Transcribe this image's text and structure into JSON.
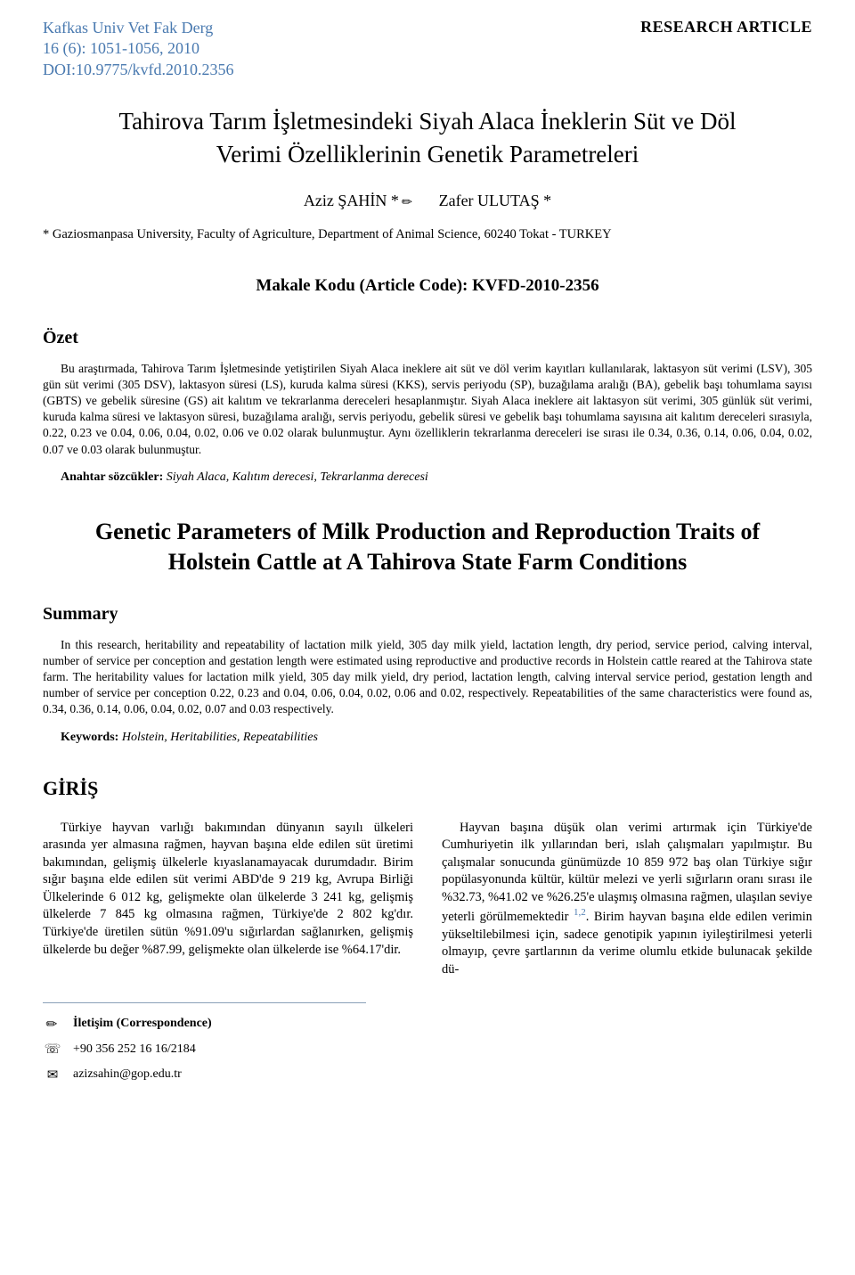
{
  "header": {
    "journal_name": "Kafkas Univ Vet Fak Derg",
    "issue": "16 (6): 1051-1056, 2010",
    "doi": "DOI:10.9775/kvfd.2010.2356",
    "article_type": "RESEARCH ARTICLE"
  },
  "title_tr": "Tahirova Tarım İşletmesindeki Siyah Alaca İneklerin Süt ve Döl Verimi Özelliklerinin Genetik Parametreleri",
  "authors": {
    "a1": "Aziz ŞAHİN *",
    "a2": "Zafer ULUTAŞ *"
  },
  "affiliation": "* Gaziosmanpasa University, Faculty of Agriculture, Department of Animal Science, 60240 Tokat - TURKEY",
  "article_code": "Makale Kodu (Article Code): KVFD-2010-2356",
  "ozet": {
    "heading": "Özet",
    "body": "Bu araştırmada, Tahirova Tarım İşletmesinde yetiştirilen Siyah Alaca ineklere ait süt ve döl verim kayıtları kullanılarak, laktasyon süt verimi (LSV), 305 gün süt verimi (305 DSV), laktasyon süresi (LS), kuruda kalma süresi (KKS), servis periyodu (SP), buzağılama aralığı (BA), gebelik başı tohumlama sayısı (GBTS) ve gebelik süresine (GS) ait kalıtım ve tekrarlanma dereceleri hesaplanmıştır. Siyah Alaca ineklere ait laktasyon süt verimi, 305 günlük süt verimi, kuruda kalma süresi ve laktasyon süresi, buzağılama aralığı, servis periyodu, gebelik süresi ve gebelik başı tohumlama sayısına ait kalıtım dereceleri sırasıyla, 0.22, 0.23 ve 0.04, 0.06, 0.04, 0.02, 0.06 ve 0.02 olarak bulunmuştur. Aynı özelliklerin tekrarlanma dereceleri ise sırası ile 0.34, 0.36, 0.14, 0.06, 0.04, 0.02, 0.07 ve 0.03 olarak bulunmuştur."
  },
  "anahtar": {
    "label": "Anahtar sözcükler:",
    "value": " Siyah Alaca, Kalıtım derecesi, Tekrarlanma derecesi"
  },
  "title_en": "Genetic Parameters of Milk Production and Reproduction Traits of Holstein Cattle at A Tahirova State Farm Conditions",
  "summary": {
    "heading": "Summary",
    "body": "In this research, heritability and repeatability of lactation milk yield, 305 day milk yield, lactation length, dry period, service period, calving interval, number of service per conception and gestation length were estimated using reproductive and productive records in Holstein cattle reared at the Tahirova state farm. The heritability values for lactation milk yield, 305 day milk yield, dry period, lactation length, calving interval service period, gestation length and number of service per conception 0.22, 0.23 and 0.04, 0.06, 0.04, 0.02, 0.06 and 0.02, respectively. Repeatabilities of the same characteristics were found as, 0.34, 0.36, 0.14, 0.06, 0.04, 0.02, 0.07 and 0.03 respectively."
  },
  "keywords": {
    "label": "Keywords:",
    "value": " Holstein, Heritabilities, Repeatabilities"
  },
  "giris": {
    "heading": "GİRİŞ",
    "left": "Türkiye hayvan varlığı bakımından dünyanın sayılı ülkeleri arasında yer almasına rağmen, hayvan başına elde edilen süt üretimi bakımından, gelişmiş ülkelerle kıyaslanamayacak durumdadır. Birim sığır başına elde edilen süt verimi ABD'de 9 219 kg, Avrupa Birliği Ülkelerinde 6 012 kg, gelişmekte olan ülkelerde 3 241 kg, gelişmiş ülkelerde 7 845 kg olmasına rağmen, Türkiye'de 2 802 kg'dır. Türkiye'de üretilen sütün %91.09'u sığırlardan sağlanırken, gelişmiş ülkelerde bu değer %87.99, gelişmekte olan ülkelerde ise %64.17'dir.",
    "right_a": "Hayvan başına düşük olan verimi artırmak için Türkiye'de Cumhuriyetin ilk yıllarından beri, ıslah çalışmaları yapılmıştır. Bu çalışmalar sonucunda günümüzde 10 859 972 baş olan Türkiye sığır popülasyonunda kültür, kültür melezi ve yerli sığırların oranı sırası ile %32.73, %41.02 ve %26.25'e ulaşmış olmasına rağmen, ulaşılan seviye yeterli görülmemektedir ",
    "right_ref": "1,2",
    "right_b": ". Birim hayvan başına elde edilen verimin yükseltilebilmesi için, sadece genotipik yapının iyileştirilmesi yeterli olmayıp, çevre şartlarının da verime olumlu etkide bulunacak şekilde dü-"
  },
  "correspondence": {
    "label": "İletişim (Correspondence)",
    "phone": "+90 356 252 16 16/2184",
    "email": "azizsahin@gop.edu.tr"
  },
  "colors": {
    "journal_blue": "#4a7ab0",
    "text": "#000000",
    "bg": "#ffffff",
    "divider": "#8aa0b8"
  }
}
